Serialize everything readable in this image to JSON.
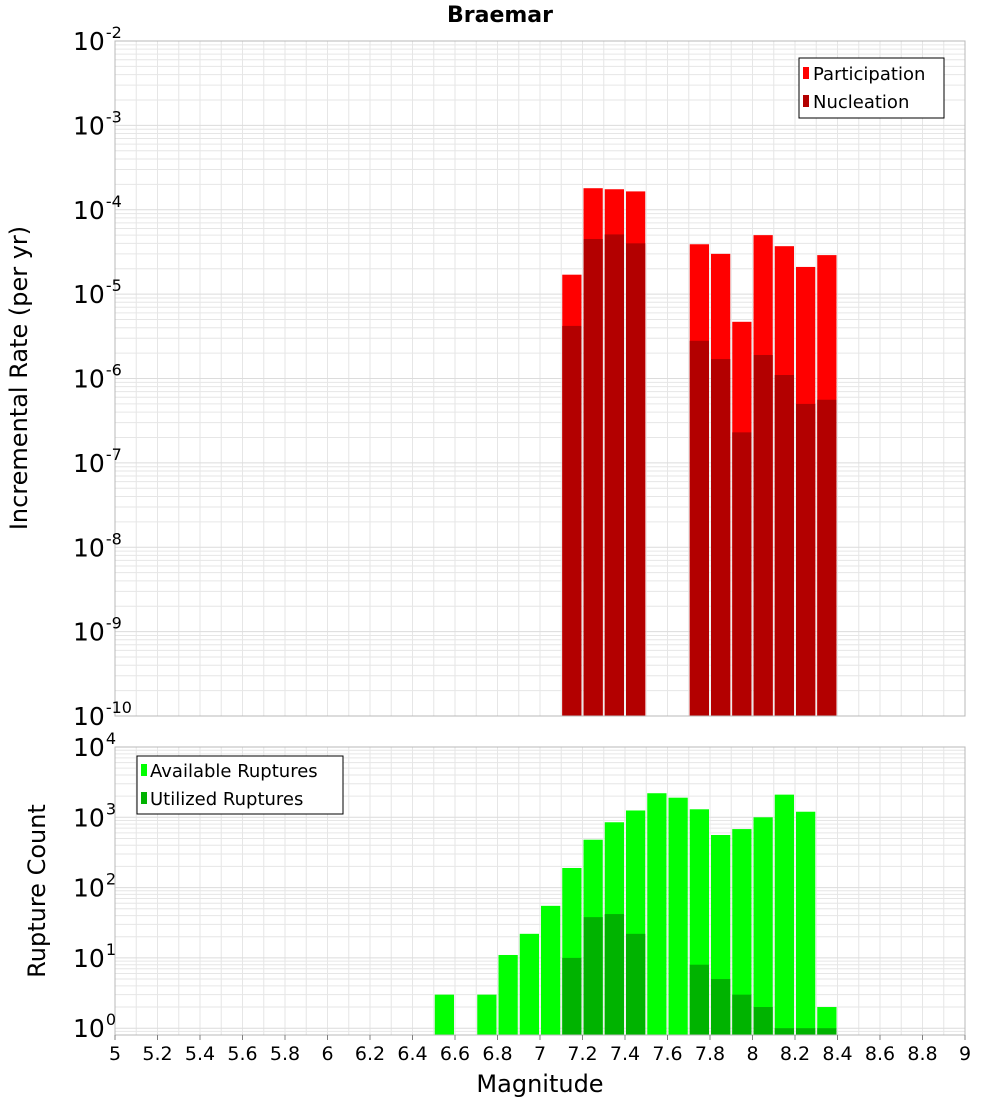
{
  "title": "Braemar",
  "xlabel": "Magnitude",
  "colors": {
    "participation": "#ff0000",
    "nucleation": "#b30000",
    "available": "#00ff00",
    "utilized": "#00b300",
    "grid": "#e6e6e6",
    "frame": "#b8b8b8"
  },
  "chart_data": [
    {
      "type": "bar",
      "name": "rates",
      "ylabel": "Incremental Rate (per yr)",
      "yscale": "log",
      "xlim": [
        5,
        9
      ],
      "ylim": [
        1e-10,
        0.01
      ],
      "ytick_base": "10",
      "ytick_exponents": [
        "-10",
        "-9",
        "-8",
        "-7",
        "-6",
        "-5",
        "-4",
        "-3",
        "-2"
      ],
      "legend_position": "top-right",
      "bar_width": 0.1,
      "series": [
        {
          "name": "Participation",
          "x": [
            7.15,
            7.25,
            7.35,
            7.45,
            7.75,
            7.85,
            7.95,
            8.05,
            8.15,
            8.25,
            8.35
          ],
          "values": [
            1.7e-05,
            0.00018,
            0.000175,
            0.000165,
            3.9e-05,
            3e-05,
            4.7e-06,
            5e-05,
            3.7e-05,
            2.1e-05,
            2.9e-05
          ]
        },
        {
          "name": "Nucleation",
          "x": [
            7.15,
            7.25,
            7.35,
            7.45,
            7.75,
            7.85,
            7.95,
            8.05,
            8.15,
            8.25,
            8.35
          ],
          "values": [
            4.2e-06,
            4.5e-05,
            5.1e-05,
            4e-05,
            2.8e-06,
            1.7e-06,
            2.3e-07,
            1.9e-06,
            1.1e-06,
            5e-07,
            5.6e-07
          ]
        }
      ]
    },
    {
      "type": "bar",
      "name": "counts",
      "ylabel": "Rupture Count",
      "yscale": "log",
      "xlim": [
        5,
        9
      ],
      "ylim": [
        0.8,
        10000
      ],
      "ytick_base": "10",
      "ytick_exponents": [
        "0",
        "1",
        "2",
        "3",
        "4"
      ],
      "xticks": [
        "5",
        "5.2",
        "5.4",
        "5.6",
        "5.8",
        "6",
        "6.2",
        "6.4",
        "6.6",
        "6.8",
        "7",
        "7.2",
        "7.4",
        "7.6",
        "7.8",
        "8",
        "8.2",
        "8.4",
        "8.6",
        "8.8",
        "9"
      ],
      "legend_position": "top-left",
      "bar_width": 0.1,
      "series": [
        {
          "name": "Available Ruptures",
          "x": [
            6.55,
            6.75,
            6.85,
            6.95,
            7.05,
            7.15,
            7.25,
            7.35,
            7.45,
            7.55,
            7.65,
            7.75,
            7.85,
            7.95,
            8.05,
            8.15,
            8.25,
            8.35
          ],
          "values": [
            3,
            3,
            11,
            22,
            55,
            190,
            480,
            850,
            1250,
            2200,
            1900,
            1300,
            560,
            680,
            1000,
            2100,
            1200,
            2
          ]
        },
        {
          "name": "Utilized Ruptures",
          "x": [
            7.15,
            7.25,
            7.35,
            7.45,
            7.75,
            7.85,
            7.95,
            8.05,
            8.15,
            8.25,
            8.35
          ],
          "values": [
            10,
            38,
            42,
            22,
            8,
            5,
            3,
            2,
            1,
            1,
            1
          ]
        }
      ]
    }
  ]
}
